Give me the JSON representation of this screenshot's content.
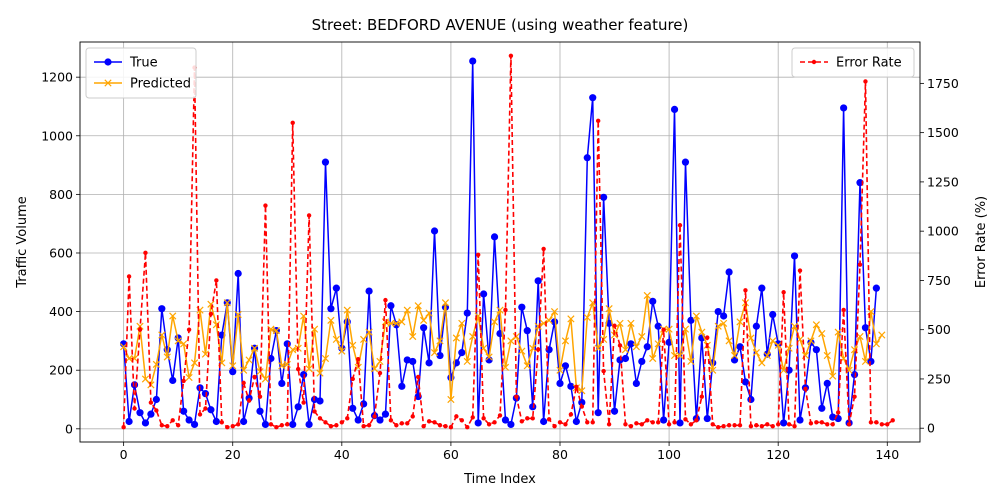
{
  "chart_data": {
    "type": "line",
    "title": "Street: BEDFORD AVENUE (using weather feature)",
    "xlabel": "Time Index",
    "ylabel": "Traffic Volume",
    "y2label": "Error Rate (%)",
    "xlim": [
      -8,
      146
    ],
    "ylim": [
      -45,
      1320
    ],
    "y2lim": [
      -70,
      1960
    ],
    "x_ticks": [
      0,
      20,
      40,
      60,
      80,
      100,
      120,
      140
    ],
    "y_ticks": [
      0,
      200,
      400,
      600,
      800,
      1000,
      1200
    ],
    "y2_ticks": [
      0,
      250,
      500,
      750,
      1000,
      1250,
      1500,
      1750
    ],
    "grid": true,
    "legend_left_placement": "upper-left",
    "legend_right_placement": "upper-right",
    "series": [
      {
        "name": "True",
        "axis": "left",
        "color": "#0000ff",
        "marker": "circle",
        "values": [
          290,
          25,
          150,
          55,
          20,
          50,
          100,
          410,
          270,
          165,
          310,
          60,
          30,
          15,
          140,
          120,
          65,
          25,
          320,
          430,
          195,
          530,
          25,
          105,
          275,
          60,
          15,
          240,
          335,
          155,
          290,
          15,
          75,
          185,
          15,
          100,
          95,
          910,
          410,
          480,
          275,
          365,
          70,
          30,
          85,
          470,
          45,
          30,
          50,
          420,
          355,
          145,
          235,
          230,
          110,
          345,
          225,
          675,
          250,
          415,
          175,
          225,
          260,
          395,
          1255,
          20,
          460,
          235,
          655,
          325,
          30,
          15,
          105,
          415,
          335,
          75,
          505,
          25,
          270,
          365,
          155,
          215,
          145,
          25,
          90,
          925,
          1130,
          55,
          790,
          360,
          60,
          235,
          240,
          290,
          155,
          230,
          280,
          435,
          350,
          30,
          295,
          1090,
          20,
          910,
          370,
          35,
          310,
          35,
          225,
          400,
          385,
          535,
          235,
          280,
          160,
          100,
          350,
          480,
          255,
          390,
          290,
          20,
          200,
          590,
          30,
          140,
          295,
          270,
          70,
          155,
          40,
          35,
          1095,
          20,
          185,
          840,
          345,
          230,
          480
        ]
      },
      {
        "name": "Predicted",
        "axis": "left",
        "color": "#ffa500",
        "marker": "x",
        "values": [
          280,
          240,
          240,
          350,
          170,
          150,
          220,
          320,
          245,
          385,
          300,
          290,
          175,
          225,
          405,
          255,
          425,
          355,
          225,
          430,
          215,
          390,
          200,
          235,
          275,
          195,
          170,
          340,
          335,
          215,
          220,
          270,
          275,
          385,
          205,
          340,
          190,
          240,
          370,
          305,
          265,
          405,
          285,
          210,
          305,
          330,
          205,
          230,
          365,
          360,
          360,
          365,
          405,
          315,
          420,
          370,
          395,
          260,
          300,
          430,
          100,
          310,
          360,
          230,
          315,
          385,
          275,
          245,
          365,
          405,
          210,
          300,
          315,
          265,
          215,
          275,
          350,
          360,
          370,
          400,
          200,
          300,
          375,
          140,
          130,
          380,
          430,
          275,
          305,
          410,
          320,
          360,
          270,
          360,
          280,
          315,
          455,
          240,
          290,
          340,
          340,
          250,
          250,
          340,
          230,
          385,
          330,
          285,
          200,
          350,
          360,
          300,
          250,
          365,
          430,
          310,
          260,
          225,
          250,
          300,
          285,
          200,
          275,
          350,
          305,
          250,
          300,
          355,
          325,
          250,
          180,
          330,
          240,
          200,
          270,
          315,
          230,
          400,
          290,
          320
        ]
      },
      {
        "name": "Error Rate",
        "axis": "right",
        "color": "#ff0000",
        "marker": "dot",
        "dashed": true,
        "values": [
          5,
          770,
          100,
          500,
          890,
          130,
          90,
          15,
          10,
          40,
          15,
          240,
          500,
          1830,
          70,
          100,
          580,
          750,
          30,
          5,
          10,
          20,
          230,
          140,
          260,
          160,
          1130,
          20,
          5,
          15,
          20,
          1550,
          300,
          130,
          1080,
          85,
          50,
          30,
          10,
          15,
          30,
          50,
          250,
          350,
          10,
          15,
          60,
          280,
          650,
          40,
          15,
          25,
          25,
          60,
          260,
          10,
          35,
          30,
          15,
          10,
          5,
          60,
          40,
          5,
          55,
          880,
          50,
          20,
          30,
          65,
          600,
          1890,
          160,
          35,
          50,
          50,
          400,
          910,
          45,
          10,
          30,
          20,
          70,
          210,
          110,
          30,
          30,
          1560,
          290,
          20,
          520,
          420,
          20,
          10,
          25,
          20,
          40,
          30,
          30,
          500,
          20,
          30,
          1030,
          45,
          20,
          40,
          160,
          460,
          20,
          5,
          10,
          15,
          15,
          15,
          700,
          10,
          15,
          10,
          20,
          10,
          20,
          690,
          20,
          10,
          800,
          200,
          25,
          30,
          30,
          20,
          20,
          80,
          600,
          20,
          160,
          830,
          1760,
          30,
          30,
          20,
          20,
          40
        ]
      }
    ]
  }
}
